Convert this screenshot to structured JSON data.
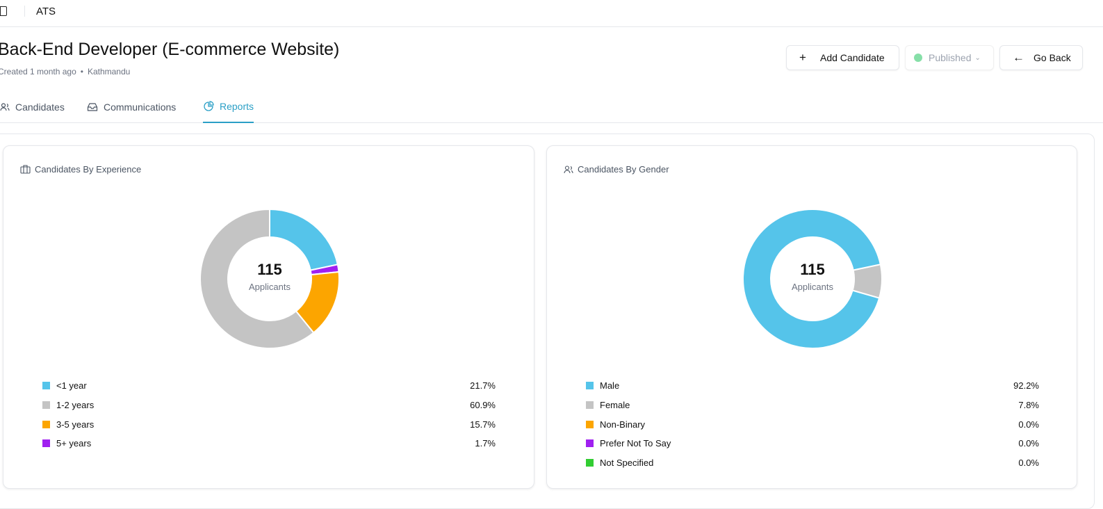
{
  "app": {
    "name": "ATS"
  },
  "job": {
    "title": "Back-End Developer (E-commerce Website)",
    "created": "Created 1 month ago",
    "location": "Kathmandu"
  },
  "actions": {
    "add": "Add Candidate",
    "status": "Published",
    "back": "Go Back"
  },
  "tabs": [
    {
      "label": "Candidates"
    },
    {
      "label": "Communications"
    },
    {
      "label": "Reports"
    }
  ],
  "chart_data": [
    {
      "type": "pie",
      "title": "Candidates By Experience",
      "center_value": "115",
      "center_label": "Applicants",
      "categories": [
        "<1 year",
        "1-2 years",
        "3-5 years",
        "5+ years"
      ],
      "values": [
        21.7,
        60.9,
        15.7,
        1.7
      ],
      "labels": [
        "21.7%",
        "60.9%",
        "15.7%",
        "1.7%"
      ],
      "colors": [
        "#55c4ea",
        "#c4c4c4",
        "#fca500",
        "#a020f0"
      ]
    },
    {
      "type": "pie",
      "title": "Candidates By Gender",
      "center_value": "115",
      "center_label": "Applicants",
      "categories": [
        "Male",
        "Female",
        "Non-Binary",
        "Prefer Not To Say",
        "Not Specified"
      ],
      "values": [
        92.2,
        7.8,
        0,
        0,
        0
      ],
      "labels": [
        "92.2%",
        "7.8%",
        "0.0%",
        "0.0%",
        "0.0%"
      ],
      "colors": [
        "#55c4ea",
        "#c4c4c4",
        "#fca500",
        "#a020f0",
        "#32cd32"
      ]
    }
  ]
}
